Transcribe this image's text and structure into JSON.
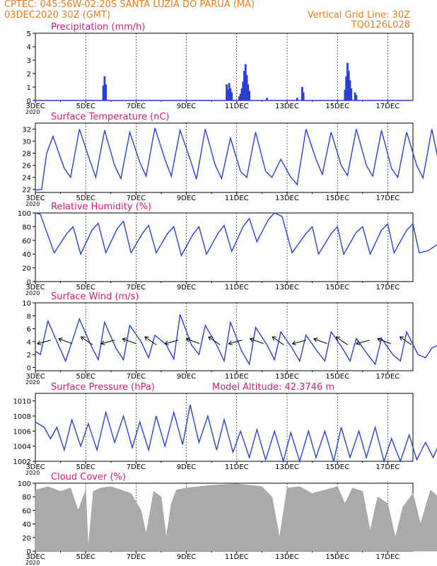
{
  "header": {
    "line1": "CPTEC:   045:56W-02:20S   SANTA LUZIA DO PARUA (MA)",
    "line2_left": "03DEC2020 30Z (GMT)",
    "line2_right": "Vertical Grid Line: 30Z",
    "line3_right": "TQ0126L028"
  },
  "colors": {
    "header": "#e87b1e",
    "title": "#e0157e",
    "line": "#2a3fd8",
    "cloud": "#aaaaaa",
    "grid": "#000000"
  },
  "x_axis": {
    "days_start": "03DEC",
    "tick_labels": [
      "3DEC",
      "5DEC",
      "7DEC",
      "9DEC",
      "11DEC",
      "13DEC",
      "15DEC",
      "17DEC"
    ],
    "corner_label": "2020",
    "range_days": [
      0,
      15
    ]
  },
  "chart_data": [
    {
      "id": "precip",
      "type": "bar",
      "title": "Precipitation (mm/h)",
      "ylim": [
        0,
        5
      ],
      "yticks": [
        0,
        1,
        2,
        3,
        4,
        5
      ],
      "grid": "vertical dashed",
      "points": [
        [
          2.7,
          1.1
        ],
        [
          2.75,
          1.8
        ],
        [
          2.8,
          1.2
        ],
        [
          7.6,
          1.2
        ],
        [
          7.65,
          0.8
        ],
        [
          7.7,
          1.3
        ],
        [
          7.75,
          0.9
        ],
        [
          7.8,
          0.6
        ],
        [
          8.1,
          0.3
        ],
        [
          8.15,
          0.5
        ],
        [
          8.2,
          0.9
        ],
        [
          8.25,
          1.4
        ],
        [
          8.3,
          2.2
        ],
        [
          8.35,
          2.7
        ],
        [
          8.4,
          1.9
        ],
        [
          8.45,
          1.2
        ],
        [
          8.5,
          0.7
        ],
        [
          9.2,
          0.2
        ],
        [
          10.4,
          0.2
        ],
        [
          10.6,
          1.0
        ],
        [
          10.65,
          0.6
        ],
        [
          12.3,
          0.8
        ],
        [
          12.35,
          1.8
        ],
        [
          12.4,
          2.8
        ],
        [
          12.45,
          2.2
        ],
        [
          12.5,
          1.5
        ],
        [
          12.55,
          0.9
        ],
        [
          12.7,
          0.6
        ],
        [
          12.75,
          0.4
        ]
      ]
    },
    {
      "id": "temp",
      "type": "line",
      "title": "Surface Temperature (nC)",
      "ylim": [
        21.5,
        33
      ],
      "yticks": [
        22,
        24,
        26,
        28,
        30,
        32
      ],
      "points": [
        [
          0,
          21.9
        ],
        [
          0.25,
          22
        ],
        [
          0.45,
          28
        ],
        [
          0.7,
          30.8
        ],
        [
          1.15,
          25.5
        ],
        [
          1.4,
          24
        ],
        [
          1.75,
          32
        ],
        [
          2.15,
          27
        ],
        [
          2.4,
          24
        ],
        [
          2.75,
          31.8
        ],
        [
          3.15,
          26
        ],
        [
          3.4,
          23.8
        ],
        [
          3.75,
          31.5
        ],
        [
          4.15,
          26.5
        ],
        [
          4.4,
          24.2
        ],
        [
          4.75,
          32.2
        ],
        [
          5.15,
          27
        ],
        [
          5.4,
          24.2
        ],
        [
          5.75,
          31.8
        ],
        [
          6.15,
          27
        ],
        [
          6.4,
          23.7
        ],
        [
          6.75,
          32
        ],
        [
          7.15,
          26
        ],
        [
          7.4,
          23.8
        ],
        [
          7.75,
          30.5
        ],
        [
          8.15,
          25
        ],
        [
          8.4,
          24
        ],
        [
          8.75,
          31.5
        ],
        [
          9.15,
          25
        ],
        [
          9.4,
          24
        ],
        [
          9.75,
          27
        ],
        [
          10.15,
          24
        ],
        [
          10.4,
          22.8
        ],
        [
          10.75,
          32
        ],
        [
          11.15,
          27
        ],
        [
          11.4,
          24.5
        ],
        [
          11.75,
          31.5
        ],
        [
          12.15,
          26
        ],
        [
          12.4,
          24.3
        ],
        [
          12.75,
          32
        ],
        [
          13.15,
          26
        ],
        [
          13.4,
          24.2
        ],
        [
          13.75,
          31.8
        ],
        [
          14.15,
          25.5
        ],
        [
          14.4,
          24
        ],
        [
          14.75,
          31.5
        ],
        [
          15.15,
          26
        ],
        [
          15.4,
          23.9
        ],
        [
          15.75,
          32
        ],
        [
          16,
          27
        ]
      ]
    },
    {
      "id": "rh",
      "type": "line",
      "title": "Relative Humidity (%)",
      "ylim": [
        0,
        100
      ],
      "yticks": [
        0,
        20,
        40,
        60,
        80,
        100
      ],
      "points": [
        [
          0,
          100
        ],
        [
          0.2,
          98
        ],
        [
          0.75,
          42
        ],
        [
          1.25,
          70
        ],
        [
          1.5,
          80
        ],
        [
          1.8,
          40
        ],
        [
          2.25,
          75
        ],
        [
          2.5,
          85
        ],
        [
          2.8,
          42
        ],
        [
          3.25,
          77
        ],
        [
          3.5,
          88
        ],
        [
          3.8,
          42
        ],
        [
          4.25,
          70
        ],
        [
          4.5,
          82
        ],
        [
          4.8,
          42
        ],
        [
          5.25,
          70
        ],
        [
          5.5,
          80
        ],
        [
          5.8,
          38
        ],
        [
          6.25,
          68
        ],
        [
          6.5,
          80
        ],
        [
          6.8,
          40
        ],
        [
          7.25,
          70
        ],
        [
          7.5,
          82
        ],
        [
          7.8,
          44
        ],
        [
          8.25,
          80
        ],
        [
          8.5,
          92
        ],
        [
          8.8,
          58
        ],
        [
          9.25,
          90
        ],
        [
          9.5,
          100
        ],
        [
          9.8,
          95
        ],
        [
          10.2,
          42
        ],
        [
          10.75,
          70
        ],
        [
          11,
          80
        ],
        [
          11.25,
          40
        ],
        [
          11.75,
          70
        ],
        [
          12,
          80
        ],
        [
          12.25,
          40
        ],
        [
          12.75,
          72
        ],
        [
          13,
          80
        ],
        [
          13.3,
          40
        ],
        [
          13.75,
          75
        ],
        [
          14,
          84
        ],
        [
          14.25,
          42
        ],
        [
          14.75,
          75
        ],
        [
          15,
          84
        ],
        [
          15.25,
          42
        ],
        [
          15.6,
          45
        ],
        [
          16,
          55
        ]
      ]
    },
    {
      "id": "wind",
      "type": "line",
      "title": "Surface Wind (m/s)",
      "ylim": [
        -0.5,
        10
      ],
      "yticks": [
        0,
        2,
        4,
        6,
        8,
        10
      ],
      "points": [
        [
          0,
          2.5
        ],
        [
          0.2,
          2
        ],
        [
          0.5,
          7.2
        ],
        [
          0.8,
          4.5
        ],
        [
          1.2,
          1
        ],
        [
          1.5,
          4.5
        ],
        [
          1.75,
          7.5
        ],
        [
          2.2,
          3.5
        ],
        [
          2.5,
          1.2
        ],
        [
          2.75,
          7
        ],
        [
          3.2,
          3
        ],
        [
          3.5,
          1.2
        ],
        [
          3.75,
          6.5
        ],
        [
          4.2,
          4
        ],
        [
          4.5,
          1.5
        ],
        [
          4.75,
          5
        ],
        [
          5.2,
          3.5
        ],
        [
          5.5,
          1.3
        ],
        [
          5.75,
          8.2
        ],
        [
          6.2,
          3.5
        ],
        [
          6.5,
          2
        ],
        [
          6.75,
          6.5
        ],
        [
          7.2,
          3.5
        ],
        [
          7.5,
          1
        ],
        [
          7.75,
          7
        ],
        [
          8.2,
          2.5
        ],
        [
          8.5,
          0.5
        ],
        [
          8.75,
          6.2
        ],
        [
          9.2,
          3.5
        ],
        [
          9.5,
          1.2
        ],
        [
          9.75,
          5.5
        ],
        [
          10.2,
          3
        ],
        [
          10.5,
          1
        ],
        [
          10.75,
          5
        ],
        [
          11.2,
          2.5
        ],
        [
          11.5,
          1
        ],
        [
          11.75,
          5.5
        ],
        [
          12.2,
          3
        ],
        [
          12.5,
          1
        ],
        [
          12.75,
          4.5
        ],
        [
          13.2,
          2
        ],
        [
          13.5,
          0.5
        ],
        [
          13.75,
          4.5
        ],
        [
          14.2,
          2
        ],
        [
          14.5,
          1
        ],
        [
          14.75,
          5.5
        ],
        [
          15.2,
          2
        ],
        [
          15.5,
          1.5
        ],
        [
          15.75,
          3
        ],
        [
          16,
          3.5
        ]
      ],
      "arrow_count": 18
    },
    {
      "id": "pressure",
      "type": "line",
      "title": "Surface Pressure (hPa)",
      "extra_label": "Model Altitude: 42.3746  m",
      "ylim": [
        1002,
        1011
      ],
      "yticks": [
        1002,
        1004,
        1006,
        1008,
        1010
      ],
      "points": [
        [
          0,
          1007.2
        ],
        [
          0.35,
          1006.5
        ],
        [
          0.6,
          1005
        ],
        [
          0.85,
          1006.5
        ],
        [
          1.15,
          1003.5
        ],
        [
          1.45,
          1007.5
        ],
        [
          1.8,
          1004
        ],
        [
          2.1,
          1007
        ],
        [
          2.45,
          1003.5
        ],
        [
          2.8,
          1008.5
        ],
        [
          3.15,
          1004.5
        ],
        [
          3.5,
          1008
        ],
        [
          3.85,
          1003.8
        ],
        [
          4.15,
          1007.2
        ],
        [
          4.5,
          1003.5
        ],
        [
          4.8,
          1008
        ],
        [
          5.15,
          1004
        ],
        [
          5.5,
          1008.5
        ],
        [
          5.85,
          1004.2
        ],
        [
          6.15,
          1009.5
        ],
        [
          6.5,
          1004.5
        ],
        [
          6.85,
          1008
        ],
        [
          7.2,
          1003.5
        ],
        [
          7.5,
          1007.5
        ],
        [
          7.85,
          1003.2
        ],
        [
          8.15,
          1006
        ],
        [
          8.5,
          1002.5
        ],
        [
          8.8,
          1006.2
        ],
        [
          9.15,
          1002.2
        ],
        [
          9.5,
          1006
        ],
        [
          9.85,
          1002
        ],
        [
          10.15,
          1005.8
        ],
        [
          10.5,
          1002
        ],
        [
          10.85,
          1006
        ],
        [
          11.15,
          1002.5
        ],
        [
          11.5,
          1006
        ],
        [
          11.85,
          1002
        ],
        [
          12.15,
          1006.5
        ],
        [
          12.5,
          1002.5
        ],
        [
          12.85,
          1006
        ],
        [
          13.15,
          1002.5
        ],
        [
          13.5,
          1006.5
        ],
        [
          13.85,
          1002
        ],
        [
          14.15,
          1005
        ],
        [
          14.5,
          1002
        ],
        [
          14.85,
          1005.5
        ],
        [
          15.15,
          1002.2
        ],
        [
          15.5,
          1004.5
        ],
        [
          15.8,
          1002.5
        ],
        [
          16,
          1004
        ]
      ]
    },
    {
      "id": "cloud",
      "type": "area",
      "title": "Cloud Cover (%)",
      "ylim": [
        0,
        100
      ],
      "yticks": [
        0,
        20,
        40,
        60,
        80,
        100
      ],
      "points": [
        [
          0,
          90
        ],
        [
          0.5,
          95
        ],
        [
          1,
          88
        ],
        [
          1.4,
          93
        ],
        [
          1.7,
          60
        ],
        [
          2,
          90
        ],
        [
          2.1,
          5
        ],
        [
          2.3,
          88
        ],
        [
          2.6,
          93
        ],
        [
          3,
          95
        ],
        [
          3.4,
          90
        ],
        [
          3.8,
          85
        ],
        [
          4.2,
          60
        ],
        [
          4.4,
          25
        ],
        [
          4.7,
          88
        ],
        [
          5,
          80
        ],
        [
          5.2,
          20
        ],
        [
          5.4,
          70
        ],
        [
          5.6,
          90
        ],
        [
          6,
          93
        ],
        [
          6.5,
          95
        ],
        [
          7,
          97
        ],
        [
          7.5,
          98
        ],
        [
          8,
          99
        ],
        [
          8.5,
          97
        ],
        [
          9,
          95
        ],
        [
          9.4,
          80
        ],
        [
          9.7,
          20
        ],
        [
          10,
          93
        ],
        [
          10.5,
          95
        ],
        [
          11,
          85
        ],
        [
          11.5,
          90
        ],
        [
          12,
          95
        ],
        [
          12.3,
          70
        ],
        [
          12.6,
          93
        ],
        [
          13,
          88
        ],
        [
          13.3,
          30
        ],
        [
          13.6,
          80
        ],
        [
          14,
          70
        ],
        [
          14.3,
          20
        ],
        [
          14.6,
          65
        ],
        [
          15,
          85
        ],
        [
          15.3,
          40
        ],
        [
          15.7,
          90
        ],
        [
          16,
          80
        ]
      ]
    }
  ]
}
